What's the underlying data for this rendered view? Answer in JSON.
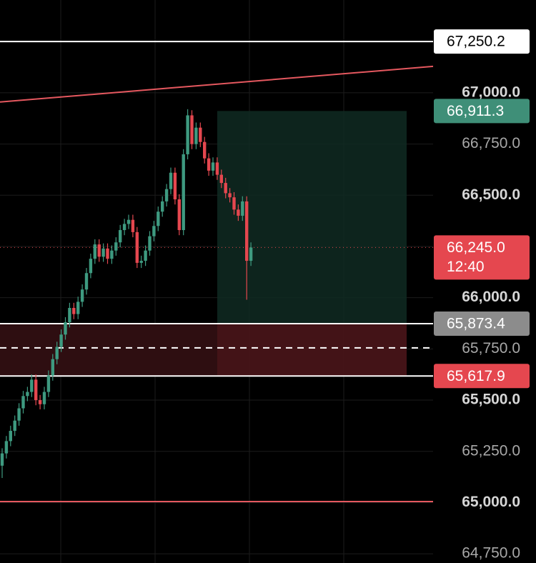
{
  "chart_data": {
    "type": "candlestick",
    "ylim": [
      64705,
      67453
    ],
    "yticks": [
      {
        "value": 67000,
        "label": "67,000.0"
      },
      {
        "value": 66750,
        "label": "66,750.0"
      },
      {
        "value": 66500,
        "label": "66,500.0"
      },
      {
        "value": 66250,
        "label": "66,250.0"
      },
      {
        "value": 66000,
        "label": "66,000.0"
      },
      {
        "value": 65750,
        "label": "65,750.0"
      },
      {
        "value": 65500,
        "label": "65,500.0"
      },
      {
        "value": 65250,
        "label": "65,250.0"
      },
      {
        "value": 65000,
        "label": "65,000.0"
      },
      {
        "value": 64750,
        "label": "64,750.0"
      }
    ],
    "grid": true,
    "up_color": "#3e9a80",
    "down_color": "#e5474f",
    "open": [
      65180,
      65240,
      65300,
      65350,
      65400,
      65460,
      65520,
      65540,
      65600,
      65500,
      65480,
      65540,
      65620,
      65700,
      65760,
      65820,
      65880,
      65950,
      65920,
      65980,
      66040,
      66120,
      66190,
      66260,
      66200,
      66240,
      66190,
      66230,
      66270,
      66330,
      66360,
      66380,
      66320,
      66170,
      66180,
      66230,
      66300,
      66350,
      66420,
      66470,
      66530,
      66610,
      66480,
      66330,
      66700,
      66890,
      66750,
      66830,
      66760,
      66680,
      66620,
      66660,
      66600,
      66560,
      66510,
      66490,
      66430,
      66400,
      66470,
      66180
    ],
    "high": [
      65265,
      65325,
      65375,
      65425,
      65485,
      65545,
      65565,
      65625,
      65625,
      65525,
      65565,
      65645,
      65725,
      65785,
      65845,
      65905,
      65975,
      65975,
      66005,
      66065,
      66145,
      66215,
      66285,
      66285,
      66265,
      66265,
      66255,
      66295,
      66355,
      66385,
      66405,
      66405,
      66345,
      66205,
      66255,
      66325,
      66375,
      66445,
      66495,
      66555,
      66635,
      66635,
      66505,
      66725,
      66920,
      66915,
      66855,
      66855,
      66785,
      66705,
      66685,
      66685,
      66625,
      66585,
      66535,
      66515,
      66455,
      66495,
      66495,
      66270
    ],
    "low": [
      65120,
      65215,
      65275,
      65325,
      65375,
      65435,
      65495,
      65515,
      65475,
      65455,
      65455,
      65515,
      65595,
      65675,
      65735,
      65795,
      65855,
      65895,
      65895,
      65955,
      66015,
      66095,
      66165,
      66175,
      66175,
      66165,
      66165,
      66205,
      66245,
      66305,
      66335,
      66295,
      66145,
      66145,
      66155,
      66205,
      66275,
      66325,
      66395,
      66445,
      66505,
      66455,
      66305,
      66305,
      66675,
      66725,
      66725,
      66735,
      66655,
      66595,
      66595,
      66575,
      66535,
      66485,
      66465,
      66405,
      66375,
      66375,
      65990,
      66155
    ],
    "close": [
      65240,
      65300,
      65350,
      65400,
      65460,
      65520,
      65540,
      65600,
      65500,
      65480,
      65540,
      65620,
      65700,
      65760,
      65820,
      65880,
      65950,
      65920,
      65980,
      66040,
      66120,
      66190,
      66260,
      66200,
      66240,
      66190,
      66230,
      66270,
      66330,
      66360,
      66380,
      66320,
      66170,
      66180,
      66230,
      66300,
      66350,
      66420,
      66470,
      66530,
      66610,
      66480,
      66330,
      66700,
      66890,
      66750,
      66830,
      66760,
      66680,
      66620,
      66660,
      66600,
      66560,
      66510,
      66490,
      66430,
      66400,
      66470,
      66180,
      66245
    ],
    "levels": [
      {
        "value": 67250.2,
        "label": "67,250.2",
        "color": "#ffffff"
      },
      {
        "value": 66911.3,
        "label": "66,911.3",
        "color": "#3f8f78"
      },
      {
        "value": 66245.0,
        "label": "66,245.0",
        "countdown": "12:40",
        "color": "#e5474f"
      },
      {
        "value": 65873.4,
        "label": "65,873.4",
        "color": "#8c8c8c"
      },
      {
        "value": 65617.9,
        "label": "65,617.9",
        "color": "#e5474f"
      }
    ],
    "trendline": {
      "from": 66955,
      "to": 67129,
      "color": "#e5585f"
    },
    "support": {
      "value": 65005,
      "color": "#e5585f"
    },
    "dashed": {
      "value": 65755,
      "color": "#ffffff"
    }
  }
}
